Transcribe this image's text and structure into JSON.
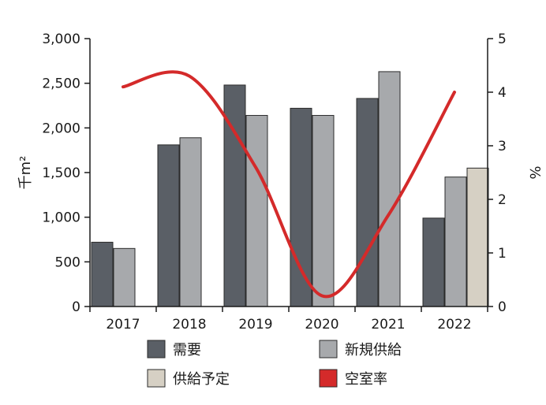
{
  "chart_data": {
    "type": "bar",
    "categories": [
      "2017",
      "2018",
      "2019",
      "2020",
      "2021",
      "2022"
    ],
    "ylabel_left": "千m²",
    "ylabel_right": "%",
    "ylim_left": [
      0,
      3000
    ],
    "yticks_left": [
      "0",
      "500",
      "1,000",
      "1,500",
      "2,000",
      "2,500",
      "3,000"
    ],
    "ylim_right": [
      0,
      5
    ],
    "yticks_right": [
      "0",
      "1",
      "2",
      "3",
      "4",
      "5"
    ],
    "grid": false,
    "legend_position": "bottom",
    "series": [
      {
        "name": "需要",
        "kind": "bar",
        "axis": "left",
        "color": "#5a5f66",
        "values": [
          720,
          1810,
          2480,
          2220,
          2330,
          990
        ]
      },
      {
        "name": "新規供給",
        "kind": "bar",
        "axis": "left",
        "color": "#a7a9ac",
        "values": [
          650,
          1890,
          2140,
          2140,
          2630,
          1450
        ]
      },
      {
        "name": "供給予定",
        "kind": "bar",
        "axis": "left",
        "color": "#d6d0c4",
        "values": [
          0,
          0,
          0,
          0,
          0,
          1550
        ]
      },
      {
        "name": "空室率",
        "kind": "line",
        "axis": "right",
        "color": "#d42a2a",
        "values": [
          4.1,
          4.3,
          2.6,
          0.2,
          1.7,
          4.0
        ]
      }
    ]
  }
}
